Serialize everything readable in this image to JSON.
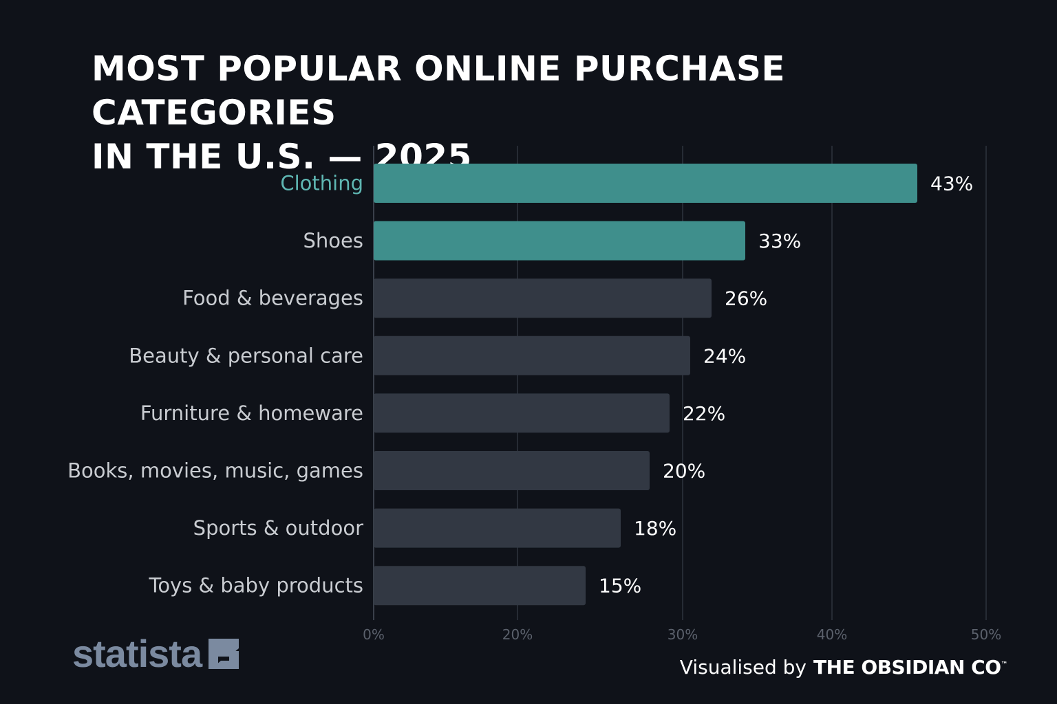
{
  "header": {
    "title_line1": "MOST POPULAR ONLINE PURCHASE CATEGORIES",
    "title_line2": "IN THE U.S. — 2025"
  },
  "chart_data": {
    "type": "bar",
    "orientation": "horizontal",
    "title": "MOST POPULAR ONLINE PURCHASE CATEGORIES IN THE U.S. — 2025",
    "categories": [
      "Clothing",
      "Shoes",
      "Food & beverages",
      "Beauty & personal care",
      "Furniture & homeware",
      "Books, movies, music, games",
      "Sports & outdoor",
      "Toys & baby products"
    ],
    "values": [
      43,
      33,
      26,
      24,
      22,
      20,
      18,
      15
    ],
    "value_labels": [
      "43%",
      "33%",
      "26%",
      "24%",
      "22%",
      "20%",
      "18%",
      "15%"
    ],
    "highlighted": [
      true,
      true,
      false,
      false,
      false,
      false,
      false,
      false
    ],
    "highlight_label": [
      true,
      false,
      false,
      false,
      false,
      false,
      false,
      false
    ],
    "x_ticks": [
      0,
      20,
      30,
      40,
      50
    ],
    "x_tick_labels": [
      "0%",
      "20%",
      "30%",
      "40%",
      "50%"
    ],
    "grid": true,
    "colors": {
      "highlight": "#3f8f8c",
      "normal": "#323843",
      "highlight_text": "#5fb7b3",
      "label_text": "#c9ccd1",
      "value_text": "#ffffff",
      "tick_text": "#5b616c",
      "grid": "#262b34",
      "axis": "#3a404a"
    }
  },
  "footer": {
    "brand": "statista",
    "credit_lead": "Visualised by",
    "credit_brand": "THE OBSIDIAN CO",
    "credit_tm": "™"
  }
}
